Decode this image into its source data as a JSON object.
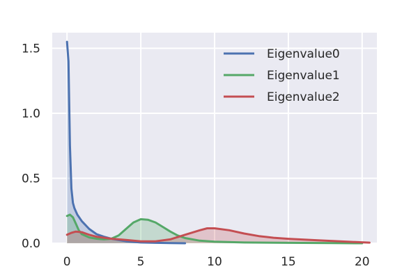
{
  "chart_data": {
    "type": "area",
    "title": "",
    "xlabel": "",
    "ylabel": "",
    "xlim": [
      -1,
      21
    ],
    "ylim": [
      0,
      1.62
    ],
    "x_ticks": [
      0,
      5,
      10,
      15,
      20
    ],
    "y_ticks": [
      0.0,
      0.5,
      1.0,
      1.5
    ],
    "x_tick_labels": [
      "0",
      "5",
      "10",
      "15",
      "20"
    ],
    "y_tick_labels": [
      "0.0",
      "0.5",
      "1.0",
      "1.5"
    ],
    "grid": true,
    "legend_position": "top-right",
    "series": [
      {
        "name": "Eigenvalue0",
        "color": "#4c72b0",
        "points": [
          [
            0,
            1.55
          ],
          [
            0.1,
            1.4
          ],
          [
            0.2,
            0.75
          ],
          [
            0.3,
            0.42
          ],
          [
            0.4,
            0.31
          ],
          [
            0.5,
            0.27
          ],
          [
            0.7,
            0.22
          ],
          [
            1.0,
            0.17
          ],
          [
            1.5,
            0.11
          ],
          [
            2.0,
            0.07
          ],
          [
            2.5,
            0.05
          ],
          [
            3.0,
            0.035
          ],
          [
            4.0,
            0.015
          ],
          [
            5.0,
            0.006
          ],
          [
            6.0,
            0.003
          ],
          [
            7.0,
            0.001
          ],
          [
            8.0,
            0.0
          ]
        ]
      },
      {
        "name": "Eigenvalue1",
        "color": "#55a868",
        "points": [
          [
            0,
            0.21
          ],
          [
            0.2,
            0.22
          ],
          [
            0.4,
            0.2
          ],
          [
            0.6,
            0.15
          ],
          [
            0.8,
            0.1
          ],
          [
            1.0,
            0.07
          ],
          [
            1.5,
            0.045
          ],
          [
            2.0,
            0.035
          ],
          [
            2.5,
            0.03
          ],
          [
            3.0,
            0.035
          ],
          [
            3.5,
            0.06
          ],
          [
            4.0,
            0.11
          ],
          [
            4.5,
            0.16
          ],
          [
            5.0,
            0.185
          ],
          [
            5.5,
            0.18
          ],
          [
            6.0,
            0.16
          ],
          [
            6.5,
            0.125
          ],
          [
            7.0,
            0.09
          ],
          [
            7.5,
            0.06
          ],
          [
            8.0,
            0.04
          ],
          [
            9.0,
            0.02
          ],
          [
            10.0,
            0.012
          ],
          [
            12.0,
            0.006
          ],
          [
            15.0,
            0.003
          ],
          [
            18.0,
            0.001
          ],
          [
            20.0,
            0.0
          ]
        ]
      },
      {
        "name": "Eigenvalue2",
        "color": "#c44e52",
        "points": [
          [
            0,
            0.065
          ],
          [
            0.3,
            0.08
          ],
          [
            0.6,
            0.09
          ],
          [
            1.0,
            0.085
          ],
          [
            1.5,
            0.065
          ],
          [
            2.0,
            0.05
          ],
          [
            3.0,
            0.035
          ],
          [
            4.0,
            0.025
          ],
          [
            5.0,
            0.015
          ],
          [
            6.0,
            0.015
          ],
          [
            7.0,
            0.03
          ],
          [
            8.0,
            0.065
          ],
          [
            9.0,
            0.1
          ],
          [
            9.5,
            0.115
          ],
          [
            10.0,
            0.115
          ],
          [
            11.0,
            0.1
          ],
          [
            12.0,
            0.075
          ],
          [
            13.0,
            0.055
          ],
          [
            14.0,
            0.042
          ],
          [
            15.0,
            0.034
          ],
          [
            17.0,
            0.023
          ],
          [
            19.0,
            0.012
          ],
          [
            20.5,
            0.005
          ]
        ]
      }
    ]
  }
}
